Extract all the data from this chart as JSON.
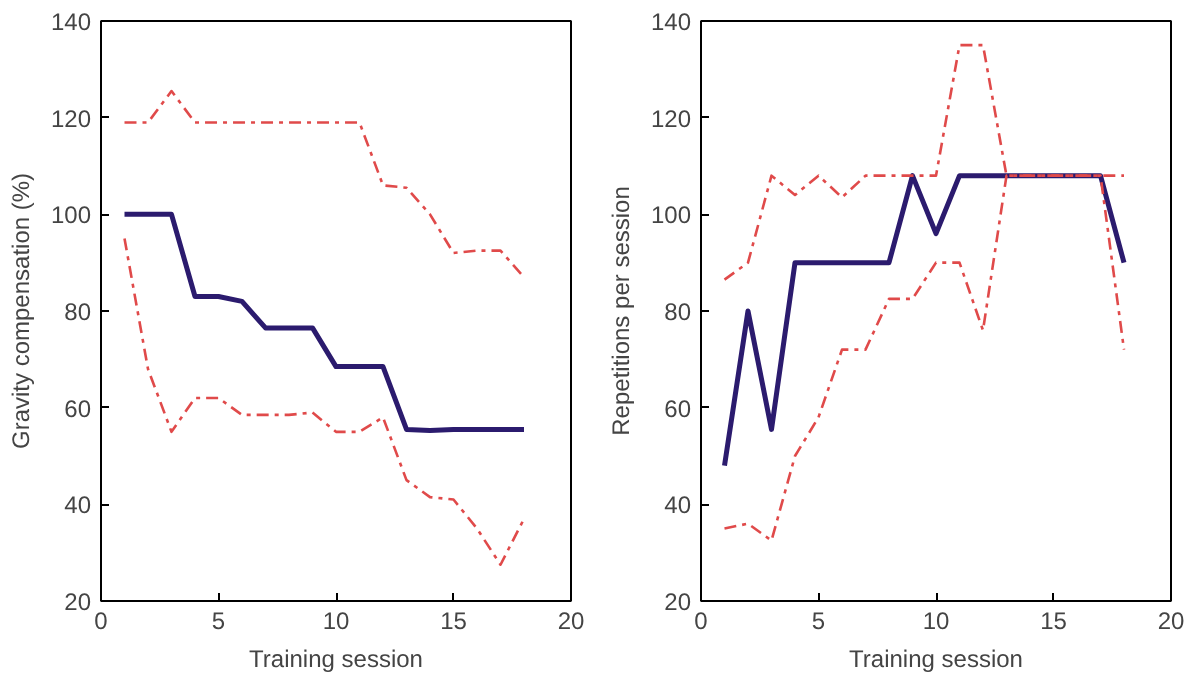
{
  "chart_data": [
    {
      "type": "line",
      "xlabel": "Training session",
      "ylabel": "Gravity compensation (%)",
      "x": [
        1,
        2,
        3,
        4,
        5,
        6,
        7,
        8,
        9,
        10,
        11,
        12,
        13,
        14,
        15,
        16,
        17,
        18
      ],
      "xlim": [
        0,
        20
      ],
      "xticks": [
        0,
        5,
        10,
        15,
        20
      ],
      "ylim": [
        20,
        140
      ],
      "yticks": [
        20,
        40,
        60,
        80,
        100,
        120,
        140
      ],
      "grid": false,
      "series": [
        {
          "color": "#2b1b6e",
          "line_style": "solid",
          "values": [
            100,
            100,
            100,
            83,
            83,
            82,
            76.5,
            76.5,
            76.5,
            68.5,
            68.5,
            68.5,
            55.5,
            55.3,
            55.5,
            55.5,
            55.5,
            55.5
          ]
        },
        {
          "color": "#e04a4a",
          "line_style": "dashed",
          "values": [
            119,
            119,
            125.5,
            119,
            119,
            119,
            119,
            119,
            119,
            119,
            119,
            106,
            105.5,
            100,
            92,
            92.5,
            92.5,
            87
          ]
        },
        {
          "color": "#e04a4a",
          "line_style": "dashed",
          "values": [
            95,
            68,
            55,
            62,
            62,
            58.5,
            58.5,
            58.5,
            59,
            55,
            55,
            58,
            45,
            41.5,
            41,
            35,
            27.5,
            37
          ]
        }
      ]
    },
    {
      "type": "line",
      "xlabel": "Training session",
      "ylabel": "Repetitions per session",
      "x": [
        1,
        2,
        3,
        4,
        5,
        6,
        7,
        8,
        9,
        10,
        11,
        12,
        13,
        14,
        15,
        16,
        17,
        18
      ],
      "xlim": [
        0,
        20
      ],
      "xticks": [
        0,
        5,
        10,
        15,
        20
      ],
      "ylim": [
        20,
        140
      ],
      "yticks": [
        20,
        40,
        60,
        80,
        100,
        120,
        140
      ],
      "grid": false,
      "series": [
        {
          "color": "#2b1b6e",
          "line_style": "solid",
          "values": [
            48,
            80,
            55.5,
            90,
            90,
            90,
            90,
            90,
            108,
            96,
            108,
            108,
            108,
            108,
            108,
            108,
            108,
            90
          ]
        },
        {
          "color": "#e04a4a",
          "line_style": "dashed",
          "values": [
            86.5,
            90,
            108,
            104,
            108,
            103.5,
            108,
            108,
            108,
            108,
            135,
            135,
            108,
            108,
            108,
            108,
            108,
            108
          ]
        },
        {
          "color": "#e04a4a",
          "line_style": "dashed",
          "values": [
            35,
            36,
            32.5,
            50,
            58,
            72,
            72,
            82.5,
            82.5,
            90,
            90,
            76,
            108,
            108,
            108,
            108,
            108,
            72
          ]
        }
      ]
    }
  ]
}
